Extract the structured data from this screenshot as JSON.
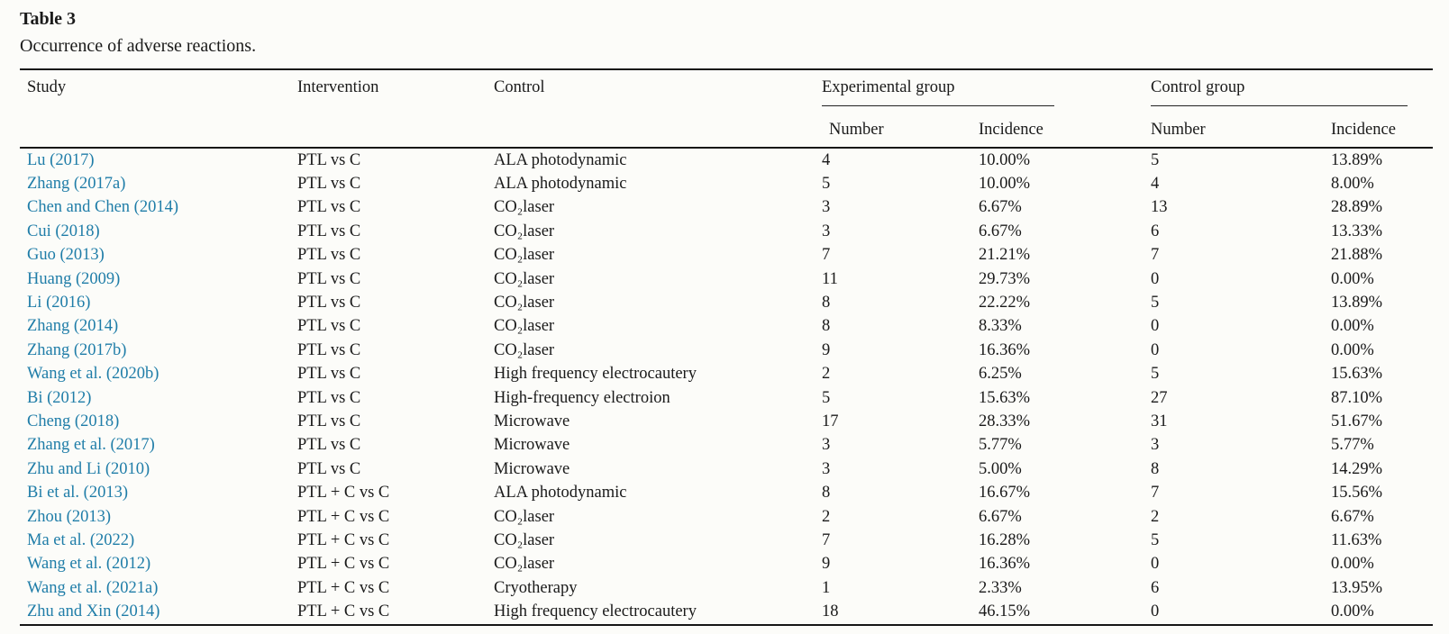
{
  "title": "Table 3",
  "caption": "Occurrence of adverse reactions.",
  "colors": {
    "link": "#1f7da8",
    "text": "#1a1a1a",
    "rule": "#161616",
    "background": "#fcfcf9"
  },
  "table": {
    "header": {
      "study": "Study",
      "intervention": "Intervention",
      "control": "Control"
    },
    "groups": [
      {
        "label": "Experimental group",
        "sub": [
          "Number",
          "Incidence"
        ]
      },
      {
        "label": "Control group",
        "sub": [
          "Number",
          "Incidence"
        ]
      }
    ],
    "rows": [
      {
        "study": "Lu (2017)",
        "intervention": "PTL vs C",
        "control": "ALA photodynamic",
        "exp_number": "4",
        "exp_incidence": "10.00%",
        "ctrl_number": "5",
        "ctrl_incidence": "13.89%"
      },
      {
        "study": "Zhang (2017a)",
        "intervention": "PTL vs C",
        "control": "ALA photodynamic",
        "exp_number": "5",
        "exp_incidence": "10.00%",
        "ctrl_number": "4",
        "ctrl_incidence": "8.00%"
      },
      {
        "study": "Chen and Chen (2014)",
        "intervention": "PTL vs C",
        "control": "CO₂laser",
        "exp_number": "3",
        "exp_incidence": "6.67%",
        "ctrl_number": "13",
        "ctrl_incidence": "28.89%"
      },
      {
        "study": "Cui (2018)",
        "intervention": "PTL vs C",
        "control": "CO₂laser",
        "exp_number": "3",
        "exp_incidence": "6.67%",
        "ctrl_number": "6",
        "ctrl_incidence": "13.33%"
      },
      {
        "study": "Guo (2013)",
        "intervention": "PTL vs C",
        "control": "CO₂laser",
        "exp_number": "7",
        "exp_incidence": "21.21%",
        "ctrl_number": "7",
        "ctrl_incidence": "21.88%"
      },
      {
        "study": "Huang (2009)",
        "intervention": "PTL vs C",
        "control": "CO₂laser",
        "exp_number": "11",
        "exp_incidence": "29.73%",
        "ctrl_number": "0",
        "ctrl_incidence": "0.00%"
      },
      {
        "study": "Li (2016)",
        "intervention": "PTL vs C",
        "control": "CO₂laser",
        "exp_number": "8",
        "exp_incidence": "22.22%",
        "ctrl_number": "5",
        "ctrl_incidence": "13.89%"
      },
      {
        "study": "Zhang (2014)",
        "intervention": "PTL vs C",
        "control": "CO₂laser",
        "exp_number": "8",
        "exp_incidence": "8.33%",
        "ctrl_number": "0",
        "ctrl_incidence": "0.00%"
      },
      {
        "study": "Zhang (2017b)",
        "intervention": "PTL vs C",
        "control": "CO₂laser",
        "exp_number": "9",
        "exp_incidence": "16.36%",
        "ctrl_number": "0",
        "ctrl_incidence": "0.00%"
      },
      {
        "study": "Wang et al. (2020b)",
        "intervention": "PTL vs C",
        "control": "High frequency electrocautery",
        "exp_number": "2",
        "exp_incidence": "6.25%",
        "ctrl_number": "5",
        "ctrl_incidence": "15.63%"
      },
      {
        "study": "Bi (2012)",
        "intervention": "PTL vs C",
        "control": "High-frequency electroion",
        "exp_number": "5",
        "exp_incidence": "15.63%",
        "ctrl_number": "27",
        "ctrl_incidence": "87.10%"
      },
      {
        "study": "Cheng (2018)",
        "intervention": "PTL vs C",
        "control": "Microwave",
        "exp_number": "17",
        "exp_incidence": "28.33%",
        "ctrl_number": "31",
        "ctrl_incidence": "51.67%"
      },
      {
        "study": "Zhang et al. (2017)",
        "intervention": "PTL vs C",
        "control": "Microwave",
        "exp_number": "3",
        "exp_incidence": "5.77%",
        "ctrl_number": "3",
        "ctrl_incidence": "5.77%"
      },
      {
        "study": "Zhu and Li (2010)",
        "intervention": "PTL vs C",
        "control": "Microwave",
        "exp_number": "3",
        "exp_incidence": "5.00%",
        "ctrl_number": "8",
        "ctrl_incidence": "14.29%"
      },
      {
        "study": "Bi et al. (2013)",
        "intervention": "PTL + C vs C",
        "control": "ALA photodynamic",
        "exp_number": "8",
        "exp_incidence": "16.67%",
        "ctrl_number": "7",
        "ctrl_incidence": "15.56%"
      },
      {
        "study": "Zhou (2013)",
        "intervention": "PTL + C vs C",
        "control": "CO₂laser",
        "exp_number": "2",
        "exp_incidence": "6.67%",
        "ctrl_number": "2",
        "ctrl_incidence": "6.67%"
      },
      {
        "study": "Ma et al. (2022)",
        "intervention": "PTL + C vs C",
        "control": "CO₂laser",
        "exp_number": "7",
        "exp_incidence": "16.28%",
        "ctrl_number": "5",
        "ctrl_incidence": "11.63%"
      },
      {
        "study": "Wang et al. (2012)",
        "intervention": "PTL + C vs C",
        "control": "CO₂laser",
        "exp_number": "9",
        "exp_incidence": "16.36%",
        "ctrl_number": "0",
        "ctrl_incidence": "0.00%"
      },
      {
        "study": "Wang et al. (2021a)",
        "intervention": "PTL + C vs C",
        "control": "Cryotherapy",
        "exp_number": "1",
        "exp_incidence": "2.33%",
        "ctrl_number": "6",
        "ctrl_incidence": "13.95%"
      },
      {
        "study": "Zhu and Xin (2014)",
        "intervention": "PTL + C vs C",
        "control": "High frequency electrocautery",
        "exp_number": "18",
        "exp_incidence": "46.15%",
        "ctrl_number": "0",
        "ctrl_incidence": "0.00%"
      }
    ]
  }
}
